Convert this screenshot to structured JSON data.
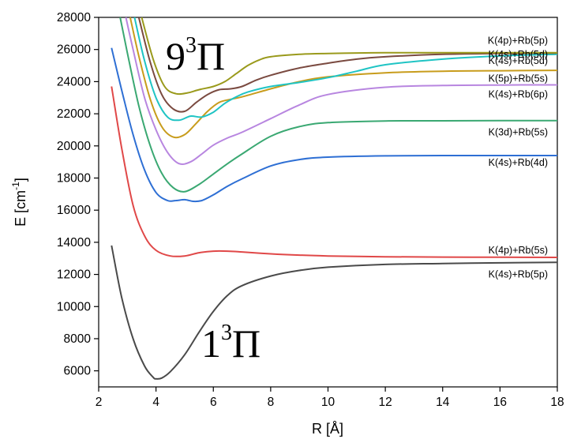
{
  "chart_data": {
    "type": "line",
    "xlabel": "R [Å]",
    "ylabel": "E [cm-1]",
    "xlim": [
      2,
      18
    ],
    "ylim": [
      5000,
      28000
    ],
    "xticks": [
      2,
      4,
      6,
      8,
      10,
      12,
      14,
      16,
      18
    ],
    "yticks": [
      6000,
      8000,
      10000,
      12000,
      14000,
      16000,
      18000,
      20000,
      22000,
      24000,
      26000,
      28000
    ],
    "annotations": [
      {
        "text": "9",
        "sup": "3",
        "symbol": "Π",
        "x": 4.3,
        "y": 25000
      },
      {
        "text": "1",
        "sup": "3",
        "symbol": "Π",
        "x": 5.4,
        "y": 6900
      }
    ],
    "grid": false,
    "legend": "none",
    "series": [
      {
        "color": "#4a4a4a",
        "end_label": "K(4s)+Rb(5p)",
        "label_y": 12000,
        "x": [
          2.45,
          2.8,
          3.2,
          3.6,
          3.9,
          4.0,
          4.2,
          4.5,
          5.0,
          5.5,
          6.0,
          6.5,
          7.0,
          8.0,
          9.0,
          10,
          12,
          14,
          16,
          18
        ],
        "y": [
          13800,
          10600,
          8000,
          6300,
          5600,
          5500,
          5550,
          5950,
          7000,
          8400,
          9700,
          10700,
          11300,
          11900,
          12250,
          12450,
          12620,
          12680,
          12720,
          12750
        ]
      },
      {
        "color": "#e04848",
        "end_label": "K(4p)+Rb(5s)",
        "label_y": 13500,
        "x": [
          2.45,
          2.8,
          3.2,
          3.6,
          4.0,
          4.5,
          5.0,
          5.5,
          6.0,
          6.5,
          7.0,
          8.0,
          9.0,
          10,
          12,
          14,
          16,
          18
        ],
        "y": [
          23700,
          19900,
          16300,
          14400,
          13500,
          13150,
          13150,
          13350,
          13450,
          13450,
          13400,
          13280,
          13200,
          13150,
          13100,
          13080,
          13070,
          13060
        ]
      },
      {
        "color": "#2e6fd4",
        "end_label": "K(4s)+Rb(4d)",
        "label_y": 18950,
        "x": [
          2.45,
          2.8,
          3.2,
          3.6,
          4.0,
          4.4,
          4.7,
          5.0,
          5.3,
          5.6,
          6.0,
          6.5,
          7.0,
          8.0,
          9.0,
          10,
          12,
          14,
          16,
          18
        ],
        "y": [
          26100,
          23500,
          20700,
          18500,
          17100,
          16600,
          16600,
          16650,
          16550,
          16600,
          16950,
          17500,
          17950,
          18750,
          19150,
          19300,
          19380,
          19400,
          19400,
          19400
        ]
      },
      {
        "color": "#3aa872",
        "end_label": "K(3d)+Rb(5s)",
        "label_y": 20850,
        "x": [
          2.75,
          3.0,
          3.4,
          3.8,
          4.2,
          4.6,
          5.0,
          5.5,
          6.0,
          6.5,
          7.0,
          8.0,
          9.0,
          10,
          12,
          14,
          16,
          18
        ],
        "y": [
          28000,
          25800,
          22500,
          20000,
          18300,
          17400,
          17150,
          17600,
          18250,
          18900,
          19500,
          20600,
          21200,
          21450,
          21550,
          21560,
          21570,
          21570
        ]
      },
      {
        "color": "#b886e0",
        "end_label": "K(4s)+Rb(6p)",
        "label_y": 23200,
        "x": [
          2.95,
          3.2,
          3.6,
          4.0,
          4.4,
          4.8,
          5.2,
          5.6,
          6.0,
          6.5,
          7.0,
          8.0,
          9.0,
          10,
          12,
          14,
          16,
          18
        ],
        "y": [
          28000,
          26000,
          23000,
          21000,
          19600,
          18900,
          19000,
          19500,
          20050,
          20500,
          20850,
          21700,
          22550,
          23200,
          23650,
          23760,
          23790,
          23800
        ]
      },
      {
        "color": "#c89c1c",
        "end_label": "K(5p)+Rb(5s)",
        "label_y": 24200,
        "x": [
          3.1,
          3.4,
          3.8,
          4.2,
          4.6,
          5.0,
          5.4,
          5.8,
          6.2,
          6.6,
          7.0,
          8.0,
          9.0,
          10,
          12,
          14,
          16,
          18
        ],
        "y": [
          28000,
          25600,
          22900,
          21200,
          20550,
          20700,
          21400,
          22150,
          22700,
          22900,
          23050,
          23550,
          24000,
          24300,
          24550,
          24650,
          24680,
          24700
        ]
      },
      {
        "color": "#1fc4c4",
        "end_label": "K(4s)+Rb(5d)",
        "label_y": 25300,
        "x": [
          3.25,
          3.6,
          4.0,
          4.4,
          4.8,
          5.2,
          5.6,
          6.0,
          6.4,
          6.8,
          7.2,
          8.0,
          9.0,
          10,
          11,
          12,
          14,
          16,
          18
        ],
        "y": [
          28000,
          25300,
          23000,
          21800,
          21600,
          21850,
          21800,
          22100,
          22650,
          23050,
          23350,
          23700,
          23950,
          24250,
          24650,
          25050,
          25400,
          25600,
          25700
        ]
      },
      {
        "color": "#7a4a40",
        "end_label": "K(4s)+Rb(5d)",
        "label_y": 25700,
        "x": [
          3.4,
          3.8,
          4.2,
          4.6,
          5.0,
          5.4,
          5.8,
          6.2,
          6.6,
          7.0,
          7.5,
          8.0,
          9.0,
          10,
          11,
          12,
          14,
          16,
          18
        ],
        "y": [
          28000,
          25200,
          23200,
          22300,
          22150,
          22700,
          23200,
          23500,
          23550,
          23700,
          24100,
          24400,
          24850,
          25150,
          25400,
          25550,
          25700,
          25750,
          25780
        ]
      },
      {
        "color": "#9a9a1c",
        "end_label": "K(4p)+Rb(5p)",
        "label_y": 26550,
        "x": [
          3.5,
          3.9,
          4.3,
          4.7,
          5.1,
          5.5,
          6.0,
          6.4,
          6.8,
          7.2,
          7.6,
          8.0,
          9.0,
          10,
          12,
          14,
          16,
          18
        ],
        "y": [
          28000,
          25400,
          23700,
          23250,
          23300,
          23500,
          23700,
          24000,
          24500,
          25000,
          25350,
          25550,
          25700,
          25750,
          25800,
          25800,
          25800,
          25800
        ]
      }
    ]
  },
  "labels_text": {
    "K45p": "K(4s)+Rb(5p)",
    "K4p5s": "K(4p)+Rb(5s)",
    "K4s4d": "K(4s)+Rb(4d)",
    "K3d5s": "K(3d)+Rb(5s)",
    "K4s6p": "K(4s)+Rb(6p)",
    "K5p5s": "K(5p)+Rb(5s)",
    "K4s5d": "K(4s)+Rb(5d)",
    "K4p5p": "K(4p)+Rb(5p)"
  }
}
